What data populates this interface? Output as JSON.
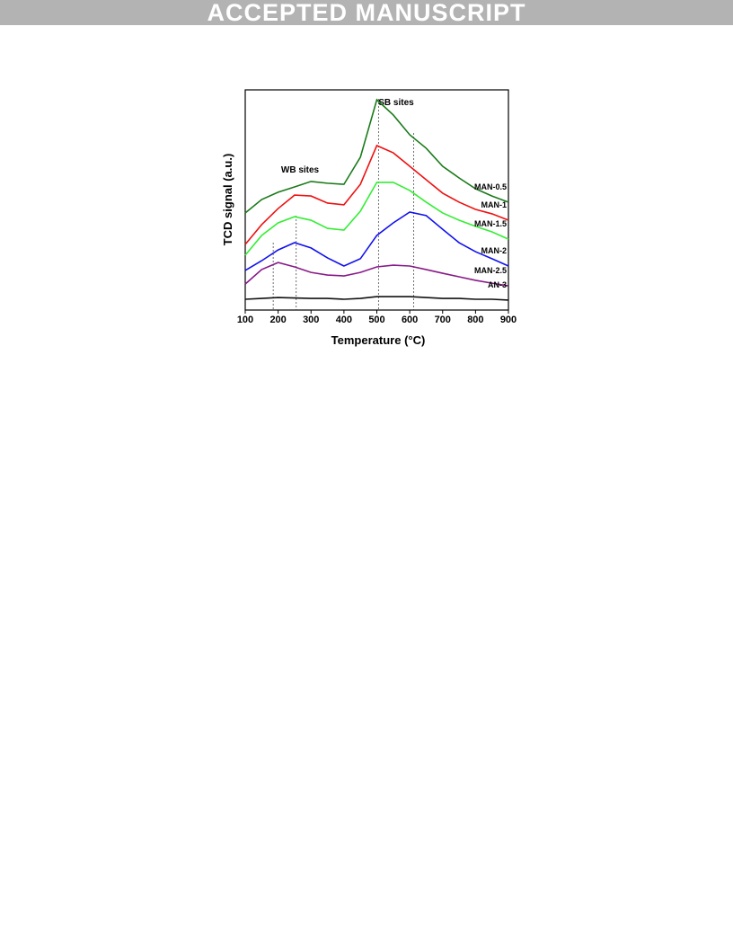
{
  "header": "ACCEPTED MANUSCRIPT",
  "chart_data": {
    "type": "line",
    "xlabel": "Temperature (°C)",
    "ylabel": "TCD signal (a.u.)",
    "x": [
      100,
      150,
      200,
      250,
      300,
      350,
      400,
      450,
      500,
      550,
      600,
      650,
      700,
      750,
      800,
      850,
      900
    ],
    "xlim": [
      100,
      900
    ],
    "xticks": [
      100,
      200,
      300,
      400,
      500,
      600,
      700,
      800,
      900
    ],
    "ylim": [
      0,
      100
    ],
    "annotations": [
      "WB sites",
      "SB sites"
    ],
    "reference_lines": [
      185,
      255,
      505,
      612
    ],
    "series": [
      {
        "name": "MAN-0.5",
        "color": "#1a7a1a",
        "values": [
          44.1,
          50.2,
          53.5,
          55.9,
          58.4,
          57.6,
          57.1,
          69.4,
          95.5,
          88.6,
          79.6,
          73.5,
          65.3,
          60,
          55.1,
          51.8,
          49
        ]
      },
      {
        "name": "MAN-1",
        "color": "#ee1111",
        "values": [
          29.8,
          38.8,
          46.1,
          52.2,
          51.8,
          48.6,
          47.8,
          57.1,
          74.7,
          71.4,
          65.3,
          59.2,
          53.1,
          49,
          45.7,
          43.7,
          40.8
        ]
      },
      {
        "name": "MAN-1.5",
        "color": "#33ee33",
        "values": [
          24.9,
          33.9,
          39.6,
          42.4,
          40.8,
          37.1,
          36.3,
          44.9,
          58,
          58,
          54.3,
          49,
          44.1,
          40.8,
          38,
          35.5,
          32.2
        ]
      },
      {
        "name": "MAN-2",
        "color": "#1111ee",
        "values": [
          18,
          22.4,
          27.3,
          30.6,
          28.2,
          23.7,
          20,
          23.3,
          33.9,
          39.6,
          44.5,
          42.9,
          36.7,
          30.6,
          26.5,
          23.3,
          20
        ]
      },
      {
        "name": "MAN-2.5",
        "color": "#881a88",
        "values": [
          11.8,
          18.4,
          21.6,
          19.6,
          17.1,
          15.9,
          15.5,
          17.1,
          19.6,
          20.4,
          20,
          18.4,
          16.7,
          15.1,
          13.5,
          12.2,
          11
        ]
      },
      {
        "name": "AN-3",
        "color": "#111111",
        "values": [
          4.9,
          5.3,
          5.7,
          5.5,
          5.3,
          5.3,
          4.9,
          5.3,
          6.1,
          6.1,
          6.1,
          5.7,
          5.3,
          5.3,
          4.9,
          4.9,
          4.5
        ]
      }
    ]
  }
}
